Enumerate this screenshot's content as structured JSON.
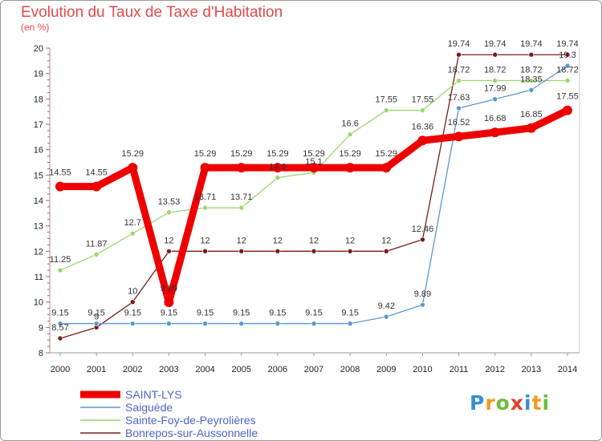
{
  "header": {
    "title": "Evolution du Taux de Taxe d'Habitation",
    "subtitle": "(en %)"
  },
  "logo": {
    "letters": [
      "P",
      "r",
      "o",
      "x",
      "i",
      "t",
      "i"
    ],
    "colors": [
      "#3a8fd0",
      "#f29a1e",
      "#6cbd3a",
      "#e2402f",
      "#3a8fd0",
      "#f29a1e",
      "#6cbd3a"
    ]
  },
  "chart_data": {
    "type": "line",
    "x": [
      2000,
      2001,
      2002,
      2003,
      2004,
      2005,
      2006,
      2007,
      2008,
      2009,
      2010,
      2011,
      2012,
      2013,
      2014
    ],
    "x_tick_labels": [
      "2000",
      "2001",
      "2002",
      "2003",
      "2004",
      "2005",
      "2006",
      "2007",
      "2008",
      "2009",
      "2010",
      "2011",
      "2012",
      "2013",
      "2014"
    ],
    "ylim": [
      8,
      20
    ],
    "y_ticks": [
      8,
      9,
      10,
      11,
      12,
      13,
      14,
      15,
      16,
      17,
      18,
      19,
      20
    ],
    "y_tick_labels": [
      "8",
      "9",
      "10",
      "11",
      "12",
      "13",
      "14",
      "15",
      "16",
      "17",
      "18",
      "19",
      "20"
    ],
    "grid": false,
    "legend_position": "bottom-left",
    "series": [
      {
        "name": "Bonrepos-sur-Aussonnelle",
        "color": "#7a1a1a",
        "values": [
          8.57,
          9,
          10,
          12,
          12,
          12,
          12,
          12,
          12,
          12,
          12.46,
          19.74,
          19.74,
          19.74,
          19.74
        ],
        "labels": [
          "8.57",
          "9",
          "10",
          "12",
          "12",
          "12",
          "12",
          "12",
          "12",
          "12",
          "12.46",
          "19.74",
          "19.74",
          "19.74",
          "19.74"
        ]
      },
      {
        "name": "Sainte-Foy-de-Peyrolières",
        "color": "#9ad66e",
        "values": [
          11.25,
          11.87,
          12.7,
          13.53,
          13.71,
          13.71,
          14.9,
          15.1,
          16.6,
          17.55,
          17.55,
          18.72,
          18.72,
          18.72,
          18.72
        ],
        "labels": [
          "11.25",
          "11.87",
          "12.7",
          "13.53",
          "13.71",
          "13.71",
          "14.9",
          "15.1",
          "16.6",
          "17.55",
          "17.55",
          "18.72",
          "18.72",
          "18.72",
          "18.72"
        ]
      },
      {
        "name": "Saiguède",
        "color": "#5b97cf",
        "values": [
          9.15,
          9.15,
          9.15,
          9.15,
          9.15,
          9.15,
          9.15,
          9.15,
          9.15,
          9.42,
          9.89,
          17.63,
          17.99,
          18.35,
          19.3
        ],
        "labels": [
          "9.15",
          "9.15",
          "9.15",
          "9.15",
          "9.15",
          "9.15",
          "9.15",
          "9.15",
          "9.15",
          "9.42",
          "9.89",
          "17.63",
          "17.99",
          "18.35",
          "19.3"
        ]
      },
      {
        "name": "SAINT-LYS",
        "color": "#ee0000",
        "values": [
          14.55,
          14.55,
          15.29,
          9.99,
          15.29,
          15.29,
          15.29,
          15.29,
          15.29,
          15.29,
          16.36,
          16.52,
          16.68,
          16.85,
          17.55
        ],
        "labels": [
          "14.55",
          "14.55",
          "15.29",
          "9.99",
          "15.29",
          "15.29",
          "15.29",
          "15.29",
          "15.29",
          "15.29",
          "16.36",
          "16.52",
          "16.68",
          "16.85",
          "17.55"
        ]
      }
    ],
    "legend": [
      {
        "name": "SAINT-LYS",
        "color": "#ee0000"
      },
      {
        "name": "Saiguède",
        "color": "#5b97cf"
      },
      {
        "name": "Sainte-Foy-de-Peyrolières",
        "color": "#9ad66e"
      },
      {
        "name": "Bonrepos-sur-Aussonnelle",
        "color": "#7a1a1a"
      }
    ]
  }
}
